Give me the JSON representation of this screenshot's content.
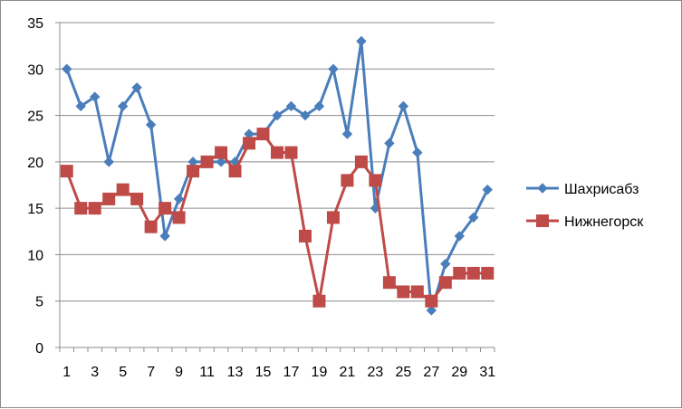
{
  "chart_data": {
    "type": "line",
    "title": "",
    "xlabel": "",
    "ylabel": "",
    "x": [
      1,
      2,
      3,
      4,
      5,
      6,
      7,
      8,
      9,
      10,
      11,
      12,
      13,
      14,
      15,
      16,
      17,
      18,
      19,
      20,
      21,
      22,
      23,
      24,
      25,
      26,
      27,
      28,
      29,
      30,
      31
    ],
    "x_tick_labels": [
      "1",
      "3",
      "5",
      "7",
      "9",
      "11",
      "13",
      "15",
      "17",
      "19",
      "21",
      "23",
      "25",
      "27",
      "29",
      "31"
    ],
    "y_tick_labels": [
      "0",
      "5",
      "10",
      "15",
      "20",
      "25",
      "30",
      "35"
    ],
    "ylim": [
      0,
      35
    ],
    "grid": "horizontal",
    "legend_position": "right",
    "series": [
      {
        "name": "Шахрисабз",
        "color": "#4a7ebb",
        "marker": "diamond",
        "values": [
          30,
          26,
          27,
          20,
          26,
          28,
          24,
          12,
          16,
          20,
          20,
          20,
          20,
          23,
          23,
          25,
          26,
          25,
          26,
          30,
          23,
          33,
          15,
          22,
          26,
          21,
          4,
          9,
          12,
          14,
          17
        ]
      },
      {
        "name": "Нижнегорск",
        "color": "#be4b48",
        "marker": "square",
        "values": [
          19,
          15,
          15,
          16,
          17,
          16,
          13,
          15,
          14,
          19,
          20,
          21,
          19,
          22,
          23,
          21,
          21,
          12,
          5,
          14,
          18,
          20,
          18,
          7,
          6,
          6,
          5,
          7,
          8,
          8,
          8
        ]
      }
    ]
  }
}
